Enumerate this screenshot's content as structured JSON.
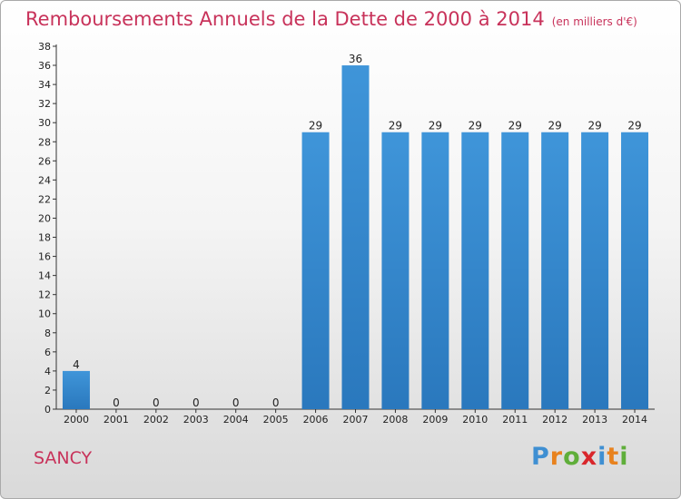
{
  "title": "Remboursements Annuels de la Dette de 2000 à 2014",
  "unit_label": "(en milliers d'€)",
  "commune": "SANCY",
  "brand": {
    "letters": [
      "P",
      "r",
      "o",
      "x",
      "i",
      "t",
      "i"
    ],
    "colors": [
      "#3f8fd2",
      "#e8821e",
      "#5fae3a",
      "#d9262b",
      "#3f8fd2",
      "#e8821e",
      "#5fae3a"
    ]
  },
  "colors": {
    "title": "#c8325a",
    "bar": "#3f95d9",
    "bar_dark": "#2a78bd",
    "axis": "#333333"
  },
  "chart_data": {
    "type": "bar",
    "title": "Remboursements Annuels de la Dette de 2000 à 2014",
    "categories": [
      "2000",
      "2001",
      "2002",
      "2003",
      "2004",
      "2005",
      "2006",
      "2007",
      "2008",
      "2009",
      "2010",
      "2011",
      "2012",
      "2013",
      "2014"
    ],
    "values": [
      4,
      0,
      0,
      0,
      0,
      0,
      29,
      36,
      29,
      29,
      29,
      29,
      29,
      29,
      29
    ],
    "data_labels": [
      "4",
      "0",
      "0",
      "0",
      "0",
      "0",
      "29",
      "36",
      "29",
      "29",
      "29",
      "29",
      "29",
      "29",
      "29"
    ],
    "ylim": [
      0,
      38
    ],
    "yticks": [
      0,
      2,
      4,
      6,
      8,
      10,
      12,
      14,
      16,
      18,
      20,
      22,
      24,
      26,
      28,
      30,
      32,
      34,
      36,
      38
    ],
    "xlabel": "",
    "ylabel": "",
    "grid": false,
    "legend": "none"
  }
}
